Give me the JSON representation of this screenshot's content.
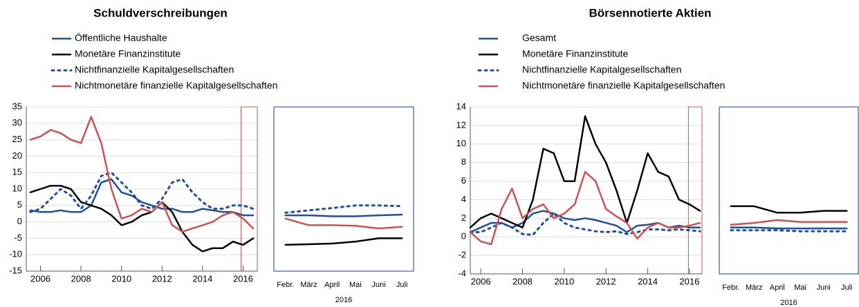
{
  "chart_data": [
    {
      "type": "line",
      "title": "Schuldverschreibungen",
      "x": [
        2005.5,
        2006,
        2006.5,
        2007,
        2007.5,
        2008,
        2008.5,
        2009,
        2009.5,
        2010,
        2010.5,
        2011,
        2011.5,
        2012,
        2012.5,
        2013,
        2013.5,
        2014,
        2014.5,
        2015,
        2015.5,
        2016,
        2016.5
      ],
      "series": [
        {
          "name": "Öffentliche Haushalte",
          "color": "#1f4e9c",
          "style": "solid",
          "values": [
            3.5,
            3,
            3,
            3.5,
            3,
            3,
            5,
            12,
            13,
            9,
            8,
            6,
            5,
            4,
            4,
            3,
            3,
            4,
            3.5,
            3,
            3,
            2,
            2
          ]
        },
        {
          "name": "Monetäre Finanzinstitute",
          "color": "#000000",
          "style": "solid",
          "values": [
            9,
            10,
            11,
            11,
            10,
            6,
            5,
            4,
            2,
            -1,
            0,
            2,
            3,
            6,
            3,
            -3,
            -7,
            -9,
            -8,
            -8,
            -6,
            -7,
            -5
          ]
        },
        {
          "name": "Nichtfinanzielle Kapitalgesellschaften",
          "color": "#1f4e9c",
          "style": "dotted",
          "values": [
            3,
            4,
            7,
            10,
            8,
            4,
            8,
            14,
            15,
            12,
            9,
            5,
            4,
            7,
            12,
            13,
            9,
            6,
            4,
            4,
            5,
            5,
            4
          ]
        },
        {
          "name": "Nichtmonetäre finanzielle Kapitalgesellschaften",
          "color": "#d0504f",
          "style": "solid",
          "values": [
            25,
            26,
            28,
            27,
            25,
            24,
            32,
            24,
            10,
            1,
            2,
            4,
            3,
            6,
            -1,
            -3,
            -2,
            -1,
            0,
            2,
            3,
            1,
            -2
          ]
        }
      ],
      "xlim": [
        2005.3,
        2016.7
      ],
      "xticks": [
        2006,
        2008,
        2010,
        2012,
        2014,
        2016
      ],
      "ylim": [
        -15,
        35
      ],
      "yticks": [
        -15,
        -10,
        -5,
        0,
        5,
        10,
        15,
        20,
        25,
        30,
        35
      ],
      "grid": true,
      "highlight_x": [
        2015.9,
        2016.7
      ],
      "highlight_color": "#d0504f",
      "legend": "top-left"
    },
    {
      "type": "line",
      "xlabel": "2016",
      "categories": [
        "Febr.",
        "März",
        "April",
        "Mai",
        "Juni",
        "Juli"
      ],
      "series": [
        {
          "color": "#1f4e9c",
          "style": "solid",
          "values": [
            2,
            2,
            1.7,
            1.7,
            2,
            2.2
          ]
        },
        {
          "color": "#000000",
          "style": "solid",
          "values": [
            -7,
            -6.8,
            -6.6,
            -6,
            -5,
            -5
          ]
        },
        {
          "color": "#1f4e9c",
          "style": "dotted",
          "values": [
            2.8,
            3.5,
            4.2,
            5,
            5,
            4.8
          ]
        },
        {
          "color": "#d0504f",
          "style": "solid",
          "values": [
            1,
            -1,
            -1,
            -1.2,
            -2,
            -1.5
          ]
        }
      ],
      "ylim": [
        -15,
        35
      ],
      "grid": false,
      "frame_color": "#3a5ea8"
    },
    {
      "type": "line",
      "title": "Börsennotierte Aktien",
      "x": [
        2005.5,
        2006,
        2006.5,
        2007,
        2007.5,
        2008,
        2008.5,
        2009,
        2009.5,
        2010,
        2010.5,
        2011,
        2011.5,
        2012,
        2012.5,
        2013,
        2013.5,
        2014,
        2014.5,
        2015,
        2015.5,
        2016,
        2016.5
      ],
      "series": [
        {
          "name": "Gesamt",
          "color": "#1f4e9c",
          "style": "solid",
          "values": [
            0.5,
            1,
            1.5,
            1.5,
            1,
            1.5,
            2.5,
            2.8,
            2.5,
            2,
            1.8,
            2,
            1.8,
            1.5,
            1.2,
            0.5,
            1.2,
            1.3,
            1.5,
            1,
            1.2,
            1,
            1
          ]
        },
        {
          "name": "Monetäre Finanzinstitute",
          "color": "#000000",
          "style": "solid",
          "values": [
            1,
            2,
            2.5,
            2,
            1.5,
            1,
            4,
            9.5,
            9,
            6,
            6,
            13,
            10,
            8,
            5,
            1.5,
            5,
            9,
            7,
            6.5,
            4,
            3.5,
            2.8
          ]
        },
        {
          "name": "Nichtfinanzielle Kapitalgesellschaften",
          "color": "#1f4e9c",
          "style": "dotted",
          "values": [
            0.5,
            0.5,
            1,
            1.5,
            1,
            0.3,
            0.2,
            1.5,
            2.5,
            1.5,
            1,
            0.8,
            0.6,
            0.5,
            0.6,
            0.3,
            0.5,
            0.8,
            0.8,
            0.7,
            0.8,
            0.7,
            0.6
          ]
        },
        {
          "name": "Nichtmonetäre finanzielle Kapitalgesellschaften",
          "color": "#d0504f",
          "style": "solid",
          "values": [
            0.5,
            -0.5,
            -0.8,
            3,
            5.2,
            2,
            3,
            3.5,
            2,
            2.5,
            3.5,
            7,
            6,
            3,
            2.2,
            1.5,
            -0.2,
            1,
            1.5,
            1,
            1,
            1.2,
            1.5
          ]
        }
      ],
      "xlim": [
        2005.5,
        2016.6
      ],
      "xticks": [
        2006,
        2008,
        2010,
        2012,
        2014,
        2016
      ],
      "ylim": [
        -4,
        14
      ],
      "yticks": [
        -4,
        -2,
        0,
        2,
        4,
        6,
        8,
        10,
        12,
        14
      ],
      "grid": true,
      "highlight_x": [
        2015.95,
        2016.6
      ],
      "highlight_color": "#d0504f",
      "legend": "top-left"
    },
    {
      "type": "line",
      "xlabel": "2016",
      "categories": [
        "Febr.",
        "März",
        "April",
        "Mai",
        "Juni",
        "Juli"
      ],
      "series": [
        {
          "color": "#1f4e9c",
          "style": "solid",
          "values": [
            1,
            1,
            0.9,
            0.9,
            0.9,
            0.9
          ]
        },
        {
          "color": "#000000",
          "style": "solid",
          "values": [
            3.3,
            3.3,
            2.6,
            2.6,
            2.8,
            2.8
          ]
        },
        {
          "color": "#1f4e9c",
          "style": "dotted",
          "values": [
            0.7,
            0.7,
            0.7,
            0.6,
            0.6,
            0.6
          ]
        },
        {
          "color": "#d0504f",
          "style": "solid",
          "values": [
            1.3,
            1.5,
            1.8,
            1.6,
            1.6,
            1.6
          ]
        }
      ],
      "ylim": [
        -4,
        14
      ],
      "grid": false,
      "frame_color": "#3a5ea8"
    }
  ]
}
